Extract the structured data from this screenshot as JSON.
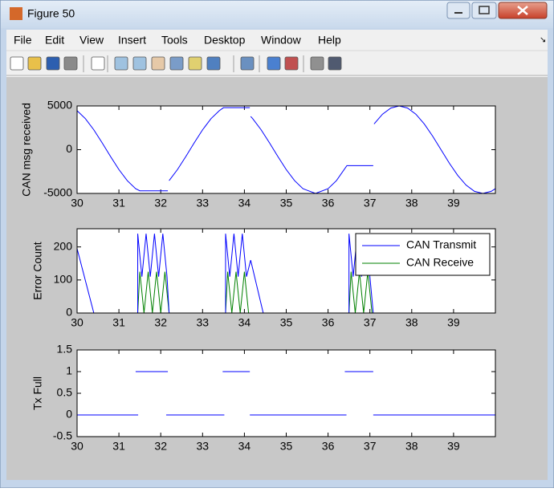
{
  "window": {
    "title": "Figure 50",
    "menu": [
      "File",
      "Edit",
      "View",
      "Insert",
      "Tools",
      "Desktop",
      "Window",
      "Help"
    ]
  },
  "chart_data": [
    {
      "type": "line",
      "ylabel": "CAN msg received",
      "xlim": [
        30,
        40
      ],
      "xticks": [
        30,
        31,
        32,
        33,
        34,
        35,
        36,
        37,
        38,
        39
      ],
      "ylim": [
        -5000,
        5000
      ],
      "yticks": [
        -5000,
        0,
        5000
      ],
      "series": [
        {
          "color": "#0000ff",
          "x": [
            30,
            30.2,
            30.4,
            30.6,
            30.8,
            31,
            31.2,
            31.4,
            31.5,
            32.17,
            null,
            32.2,
            32.4,
            32.6,
            32.8,
            33,
            33.2,
            33.4,
            33.5,
            34.13,
            null,
            34.15,
            34.2,
            34.4,
            34.6,
            34.8,
            35,
            35.2,
            35.4,
            35.7,
            36,
            36.2,
            36.45,
            37.08,
            null,
            37.1,
            37.3,
            37.5,
            37.7,
            37.9,
            38.1,
            38.3,
            38.5,
            38.7,
            38.9,
            39.1,
            39.3,
            39.5,
            39.7,
            39.9,
            40
          ],
          "values": [
            4460,
            3540,
            2270,
            780,
            -780,
            -2270,
            -3540,
            -4460,
            -4700,
            -4700,
            null,
            -3540,
            -2270,
            -780,
            780,
            2270,
            3540,
            4460,
            4800,
            4800,
            null,
            3800,
            3540,
            2270,
            780,
            -780,
            -2270,
            -3540,
            -4460,
            -5000,
            -4460,
            -3540,
            -1820,
            -1820,
            null,
            2940,
            4050,
            4760,
            5000,
            4760,
            4050,
            2940,
            1550,
            0,
            -1550,
            -2940,
            -4050,
            -4760,
            -5000,
            -4760,
            -4460
          ]
        }
      ]
    },
    {
      "type": "line",
      "ylabel": "Error Count",
      "legend": "northeast",
      "xlim": [
        30,
        40
      ],
      "xticks": [
        30,
        31,
        32,
        33,
        34,
        35,
        36,
        37,
        38,
        39
      ],
      "ylim": [
        0,
        255
      ],
      "yticks": [
        0,
        100,
        200
      ],
      "series": [
        {
          "name": "CAN Transmit",
          "color": "#0000ff",
          "x": [
            30,
            30.4,
            31.45,
            31.45,
            31.55,
            31.65,
            31.75,
            31.85,
            31.95,
            32.05,
            32.15,
            32.2,
            33.55,
            33.55,
            33.65,
            33.75,
            33.85,
            33.95,
            34.05,
            34.15,
            34.45,
            36.5,
            36.5,
            36.6,
            36.7,
            36.8,
            36.9,
            37.0,
            37.08,
            40
          ],
          "values": [
            195,
            0,
            0,
            240,
            110,
            240,
            110,
            240,
            110,
            240,
            110,
            0,
            0,
            240,
            110,
            240,
            110,
            240,
            110,
            160,
            0,
            0,
            240,
            110,
            240,
            110,
            240,
            110,
            0,
            0
          ]
        },
        {
          "name": "CAN Receive",
          "color": "#008000",
          "x": [
            30,
            31.45,
            31.5,
            31.6,
            31.7,
            31.8,
            31.9,
            32.0,
            32.1,
            32.2,
            33.55,
            33.6,
            33.7,
            33.8,
            33.9,
            34.0,
            34.1,
            34.15,
            36.5,
            36.55,
            36.65,
            36.75,
            36.85,
            36.95,
            37.05,
            37.1,
            40
          ],
          "values": [
            0,
            0,
            125,
            0,
            125,
            0,
            125,
            0,
            125,
            0,
            0,
            125,
            0,
            125,
            0,
            125,
            0,
            0,
            0,
            125,
            0,
            125,
            0,
            125,
            0,
            0,
            0
          ]
        }
      ]
    },
    {
      "type": "line",
      "ylabel": "Tx Full",
      "xlim": [
        30,
        40
      ],
      "xticks": [
        30,
        31,
        32,
        33,
        34,
        35,
        36,
        37,
        38,
        39
      ],
      "ylim": [
        -0.5,
        1.5
      ],
      "yticks": [
        -0.5,
        0,
        0.5,
        1,
        1.5
      ],
      "series": [
        {
          "color": "#0000ff",
          "x": [
            30,
            31.46,
            null,
            31.4,
            32.17,
            null,
            32.13,
            33.52,
            null,
            33.48,
            34.13,
            null,
            34.13,
            36.44,
            null,
            36.4,
            37.08,
            null,
            37.08,
            40
          ],
          "values": [
            0,
            0,
            null,
            1,
            1,
            null,
            0,
            0,
            null,
            1,
            1,
            null,
            0,
            0,
            null,
            1,
            1,
            null,
            0,
            0
          ]
        }
      ]
    }
  ]
}
